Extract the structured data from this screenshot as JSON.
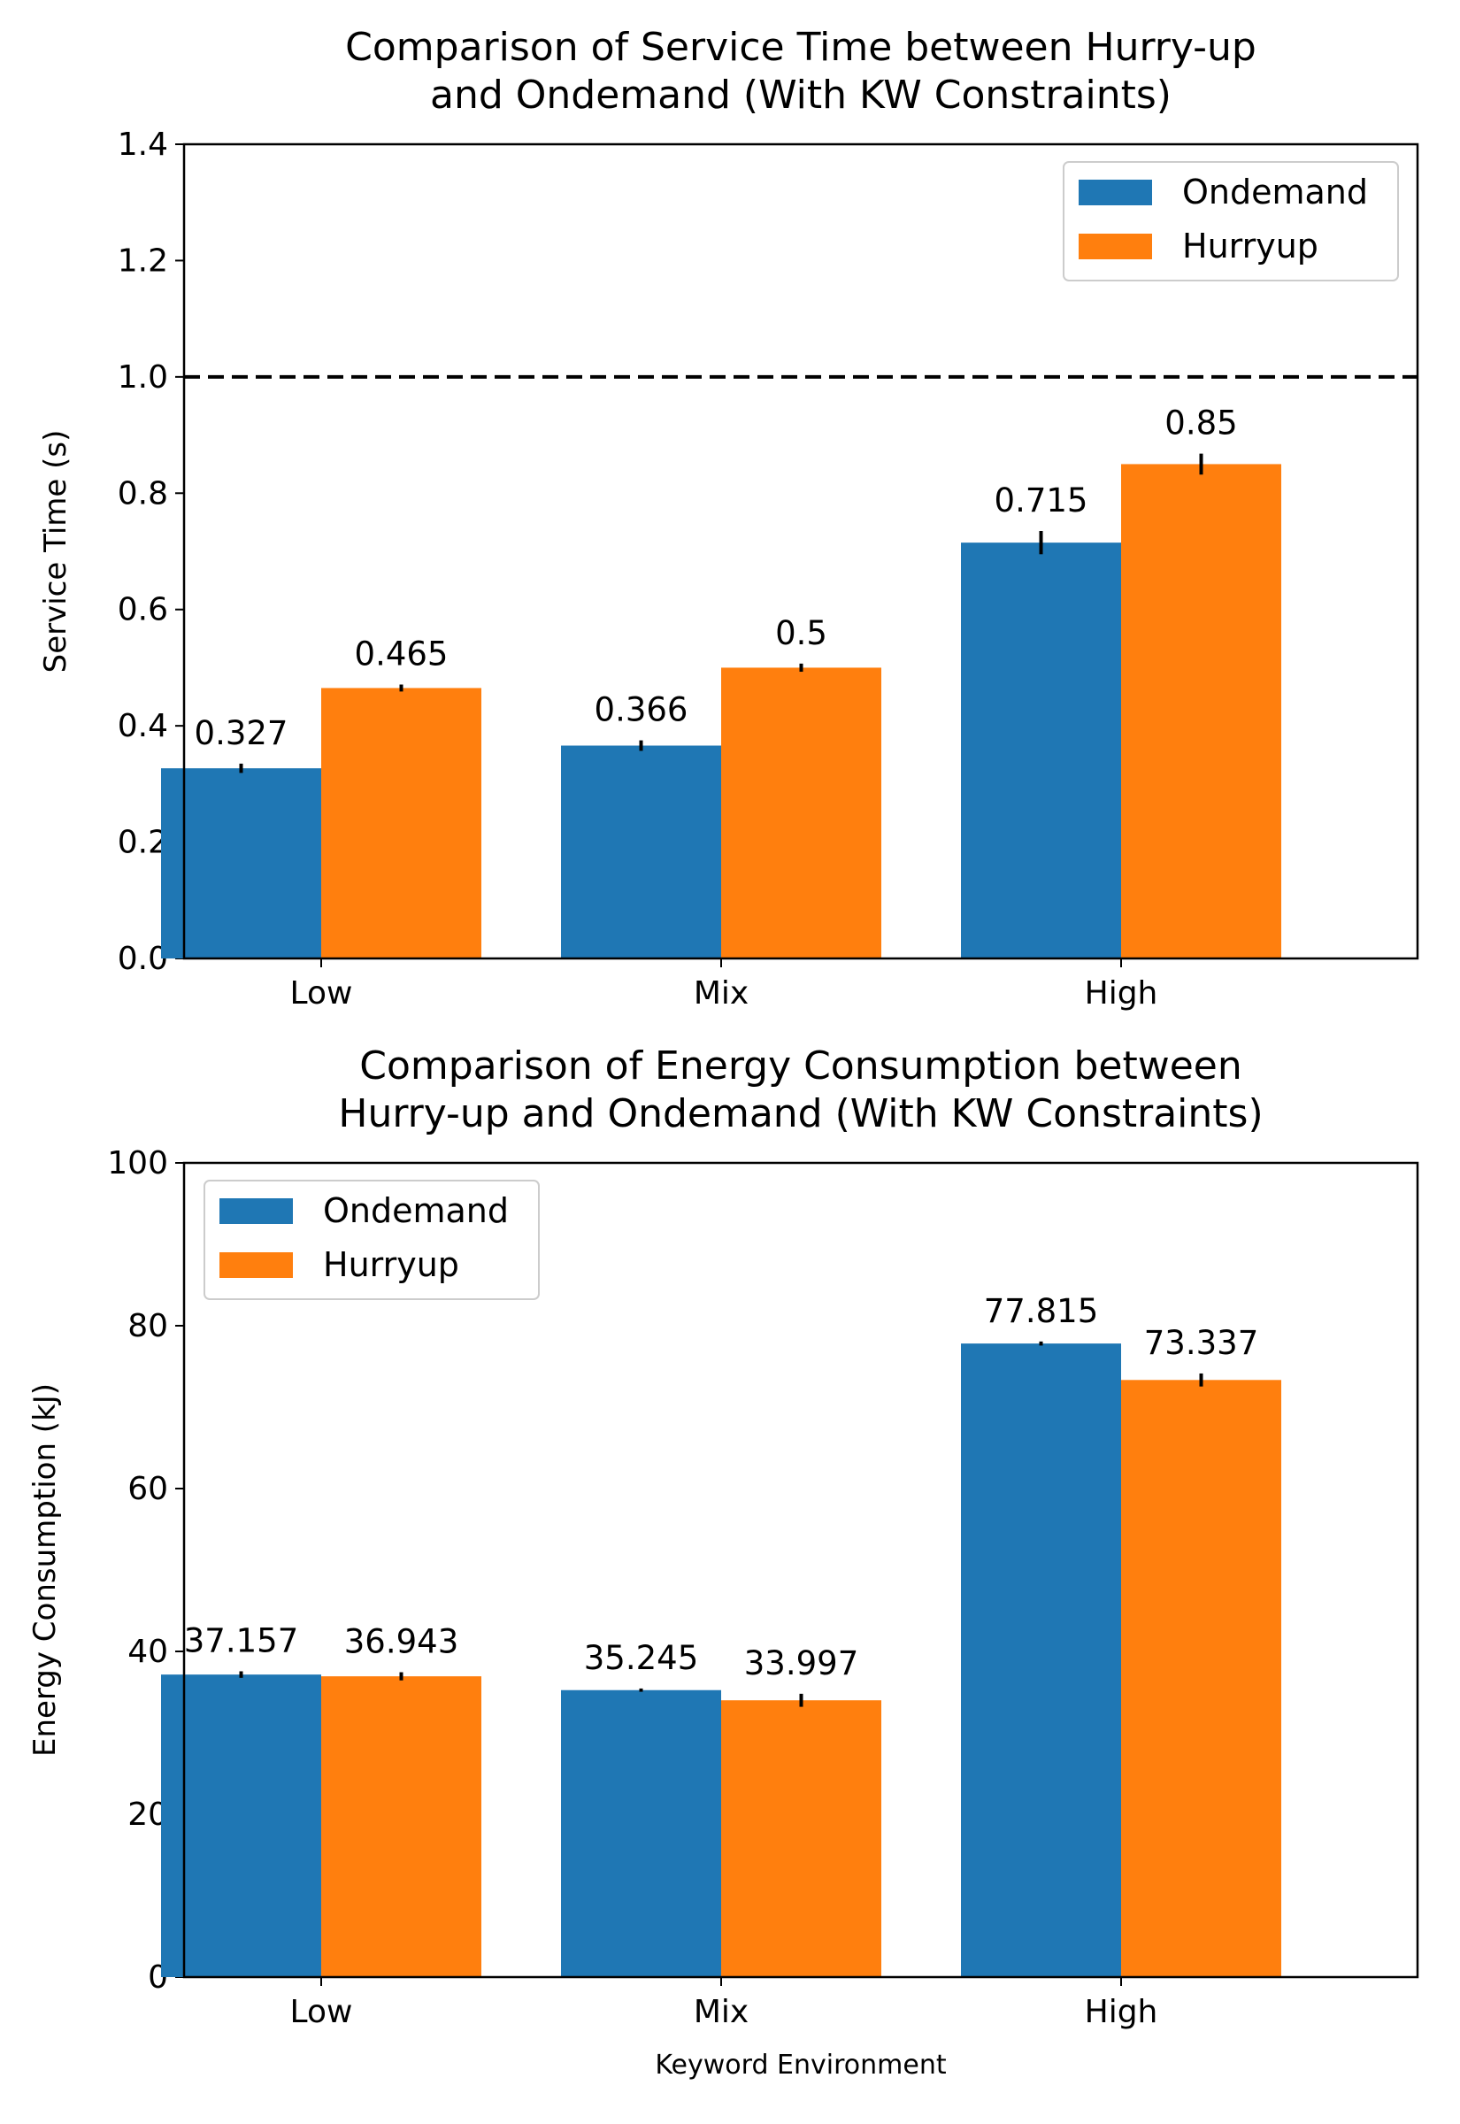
{
  "chart_data": [
    {
      "type": "bar",
      "title": "Comparison of Service Time between Hurry-up\nand Ondemand (With KW Constraints)",
      "xlabel": "",
      "ylabel": "Service Time (s)",
      "categories": [
        "Low",
        "Mix",
        "High"
      ],
      "series": [
        {
          "name": "Ondemand",
          "color": "#1f77b4",
          "values": [
            0.327,
            0.366,
            0.715
          ],
          "errors": [
            0.008,
            0.009,
            0.02
          ]
        },
        {
          "name": "Hurryup",
          "color": "#ff7f0e",
          "values": [
            0.465,
            0.5,
            0.85
          ],
          "errors": [
            0.006,
            0.007,
            0.018
          ]
        }
      ],
      "data_labels": [
        [
          "0.327",
          "0.366",
          "0.715"
        ],
        [
          "0.465",
          "0.5",
          "0.85"
        ]
      ],
      "ylim": [
        0,
        1.4
      ],
      "yticks": [
        "0.0",
        "0.2",
        "0.4",
        "0.6",
        "0.8",
        "1.0",
        "1.2",
        "1.4"
      ],
      "reference_line": {
        "y": 1.0,
        "style": "dashed",
        "color": "#000000"
      },
      "legend": "top-right",
      "grid": false
    },
    {
      "type": "bar",
      "title": "Comparison of Energy Consumption between\nHurry-up and Ondemand (With KW Constraints)",
      "xlabel": "Keyword Environment",
      "ylabel": "Energy Consumption (kJ)",
      "categories": [
        "Low",
        "Mix",
        "High"
      ],
      "series": [
        {
          "name": "Ondemand",
          "color": "#1f77b4",
          "values": [
            37.157,
            35.245,
            77.815
          ],
          "errors": [
            0.4,
            0.2,
            0.25
          ]
        },
        {
          "name": "Hurryup",
          "color": "#ff7f0e",
          "values": [
            36.943,
            33.997,
            73.337
          ],
          "errors": [
            0.5,
            0.8,
            0.8
          ]
        }
      ],
      "data_labels": [
        [
          "37.157",
          "35.245",
          "77.815"
        ],
        [
          "36.943",
          "33.997",
          "73.337"
        ]
      ],
      "ylim": [
        0,
        100
      ],
      "yticks": [
        "0",
        "20",
        "40",
        "60",
        "80",
        "100"
      ],
      "legend": "top-left",
      "grid": false
    }
  ]
}
